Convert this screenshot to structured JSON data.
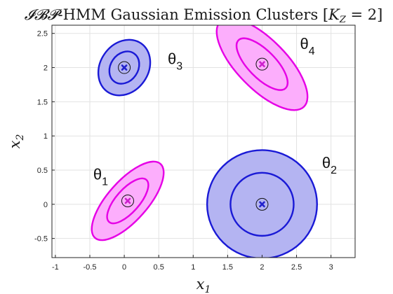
{
  "chart_data": {
    "type": "scatter",
    "title": "𝓘𝓑𝓟-HMM Gaussian Emission Clusters [K_Z = 2]",
    "title_parts": {
      "script": "𝓘𝓑𝓟",
      "text": "-HMM Gaussian Emission Clusters [",
      "k": "K",
      "sub": "Z",
      "rest": " = 2]"
    },
    "xlabel": {
      "base": "x",
      "sub": "1"
    },
    "ylabel": {
      "base": "x",
      "sub": "2"
    },
    "xlim": [
      -1.05,
      3.35
    ],
    "ylim": [
      -0.78,
      2.62
    ],
    "xticks": [
      -1,
      -0.5,
      0,
      0.5,
      1,
      1.5,
      2,
      2.5,
      3
    ],
    "xtick_labels": [
      "-1",
      "-0.5",
      "0",
      "0.5",
      "1",
      "1.5",
      "2",
      "2.5",
      "3"
    ],
    "yticks": [
      -0.5,
      0,
      0.5,
      1,
      1.5,
      2,
      2.5
    ],
    "ytick_labels": [
      "-0.5",
      "0",
      "0.5",
      "1",
      "1.5",
      "2",
      "2.5"
    ],
    "grid": true,
    "colors": {
      "blue_edge": "#1a1ad6",
      "blue_fill": "#b4b4f2",
      "magenta_edge": "#e600e6",
      "magenta_fill": "#fcaefc",
      "marker_blue": "#2222cc",
      "marker_magenta": "#cc22cc",
      "grid": "#e2e2e2",
      "axis": "#262626"
    },
    "clusters": [
      {
        "name": "theta_1",
        "label": {
          "base": "θ",
          "sub": "1",
          "x": -0.45,
          "y": 0.36
        },
        "mean": [
          0.05,
          0.05
        ],
        "color": "magenta",
        "outer": {
          "a": 0.72,
          "b": 0.29,
          "angle_deg": 48.6
        },
        "inner": {
          "a": 0.41,
          "b": 0.17,
          "angle_deg": 48.6
        }
      },
      {
        "name": "theta_2",
        "label": {
          "base": "θ",
          "sub": "2",
          "x": 2.87,
          "y": 0.53
        },
        "mean": [
          2.0,
          0.0
        ],
        "color": "blue",
        "outer": {
          "a": 0.8,
          "b": 0.79,
          "angle_deg": 0
        },
        "inner": {
          "a": 0.46,
          "b": 0.46,
          "angle_deg": 0
        }
      },
      {
        "name": "theta_3",
        "label": {
          "base": "θ",
          "sub": "3",
          "x": 0.63,
          "y": 2.05
        },
        "mean": [
          0.0,
          2.0
        ],
        "color": "blue",
        "outer": {
          "a": 0.43,
          "b": 0.35,
          "angle_deg": 55.5
        },
        "inner": {
          "a": 0.25,
          "b": 0.2,
          "angle_deg": 55.5
        }
      },
      {
        "name": "theta_4",
        "label": {
          "base": "θ",
          "sub": "4",
          "x": 2.55,
          "y": 2.27
        },
        "mean": [
          2.0,
          2.05
        ],
        "color": "magenta",
        "outer": {
          "a": 0.87,
          "b": 0.36,
          "angle_deg": -45.6
        },
        "inner": {
          "a": 0.49,
          "b": 0.2,
          "angle_deg": -45.6
        }
      }
    ]
  }
}
